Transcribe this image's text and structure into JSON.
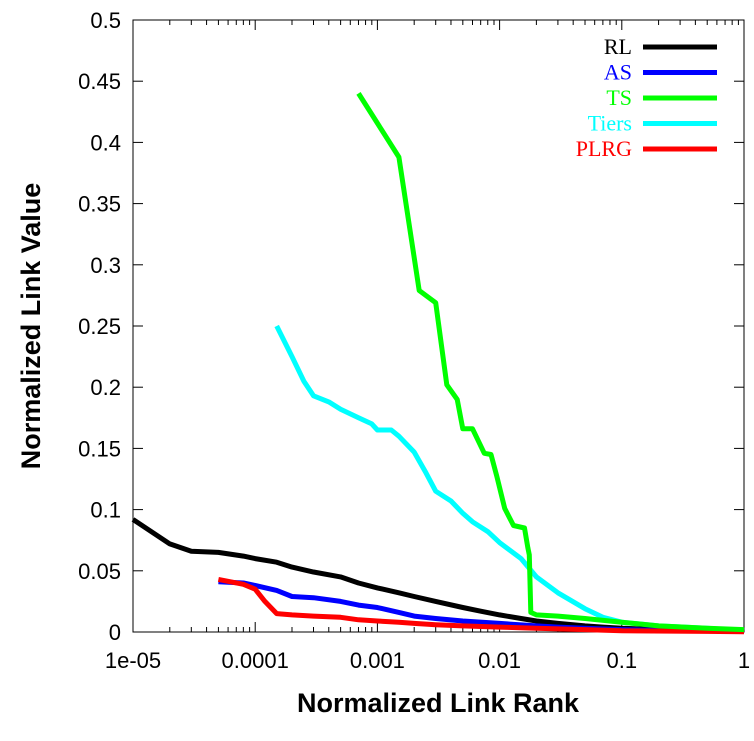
{
  "chart_data": {
    "type": "line",
    "title": "",
    "xlabel": "Normalized Link Rank",
    "ylabel": "Normalized Link Value",
    "xscale": "log",
    "xlim": [
      1e-05,
      1
    ],
    "ylim": [
      0,
      0.5
    ],
    "x_ticks": [
      "1e-05",
      "0.0001",
      "0.001",
      "0.01",
      "0.1",
      "1"
    ],
    "y_ticks": [
      "0",
      "0.05",
      "0.1",
      "0.15",
      "0.2",
      "0.25",
      "0.3",
      "0.35",
      "0.4",
      "0.45",
      "0.5"
    ],
    "grid": false,
    "legend_position": "top-right",
    "series": [
      {
        "name": "RL",
        "color": "#000000",
        "x": [
          1e-05,
          2e-05,
          3e-05,
          5e-05,
          8e-05,
          0.0001,
          0.00015,
          0.0002,
          0.0003,
          0.0005,
          0.0007,
          0.001,
          0.0015,
          0.002,
          0.003,
          0.005,
          0.007,
          0.01,
          0.015,
          0.02,
          0.03,
          0.05,
          0.07,
          0.1,
          0.2,
          0.3,
          0.5,
          1
        ],
        "y": [
          0.092,
          0.072,
          0.066,
          0.065,
          0.062,
          0.06,
          0.057,
          0.053,
          0.049,
          0.045,
          0.04,
          0.036,
          0.032,
          0.029,
          0.025,
          0.02,
          0.017,
          0.014,
          0.011,
          0.009,
          0.007,
          0.005,
          0.004,
          0.003,
          0.002,
          0.0015,
          0.001,
          0.0005
        ]
      },
      {
        "name": "AS",
        "color": "#0000ff",
        "x": [
          5e-05,
          8e-05,
          0.0001,
          0.00015,
          0.0002,
          0.0003,
          0.0005,
          0.0007,
          0.001,
          0.0015,
          0.002,
          0.003,
          0.005,
          0.01,
          0.02,
          0.03,
          0.05,
          0.1,
          0.2,
          0.5,
          1
        ],
        "y": [
          0.041,
          0.04,
          0.038,
          0.034,
          0.029,
          0.028,
          0.025,
          0.022,
          0.02,
          0.016,
          0.013,
          0.011,
          0.009,
          0.007,
          0.005,
          0.004,
          0.003,
          0.002,
          0.0015,
          0.001,
          0.0005
        ]
      },
      {
        "name": "TS",
        "color": "#00ff00",
        "x": [
          0.0007,
          0.0015,
          0.0022,
          0.003,
          0.0037,
          0.0045,
          0.005,
          0.006,
          0.0075,
          0.0085,
          0.0095,
          0.011,
          0.013,
          0.016,
          0.017,
          0.0175,
          0.018,
          0.02,
          0.03,
          0.05,
          0.1,
          0.2,
          0.5,
          1
        ],
        "y": [
          0.44,
          0.388,
          0.279,
          0.269,
          0.202,
          0.19,
          0.166,
          0.166,
          0.146,
          0.145,
          0.127,
          0.101,
          0.087,
          0.085,
          0.069,
          0.063,
          0.016,
          0.014,
          0.013,
          0.011,
          0.008,
          0.005,
          0.003,
          0.002
        ]
      },
      {
        "name": "Tiers",
        "color": "#00ffff",
        "x": [
          0.00015,
          0.0002,
          0.00025,
          0.0003,
          0.0004,
          0.0005,
          0.0007,
          0.0009,
          0.001,
          0.0013,
          0.0015,
          0.002,
          0.0025,
          0.003,
          0.004,
          0.005,
          0.006,
          0.008,
          0.01,
          0.015,
          0.02,
          0.03,
          0.05,
          0.07,
          0.1,
          0.2,
          0.5,
          1
        ],
        "y": [
          0.25,
          0.225,
          0.205,
          0.193,
          0.188,
          0.182,
          0.175,
          0.17,
          0.165,
          0.165,
          0.16,
          0.147,
          0.13,
          0.115,
          0.107,
          0.097,
          0.09,
          0.082,
          0.073,
          0.06,
          0.045,
          0.032,
          0.019,
          0.012,
          0.008,
          0.005,
          0.003,
          0.001
        ]
      },
      {
        "name": "PLRG",
        "color": "#ff0000",
        "x": [
          5e-05,
          8e-05,
          0.0001,
          0.00012,
          0.00015,
          0.0002,
          0.0003,
          0.0005,
          0.0007,
          0.001,
          0.0015,
          0.002,
          0.003,
          0.005,
          0.01,
          0.02,
          0.05,
          0.1,
          0.5,
          1
        ],
        "y": [
          0.043,
          0.039,
          0.035,
          0.025,
          0.015,
          0.014,
          0.013,
          0.012,
          0.01,
          0.009,
          0.008,
          0.007,
          0.006,
          0.005,
          0.004,
          0.003,
          0.002,
          0.001,
          0.0005,
          0.0002
        ]
      }
    ]
  }
}
